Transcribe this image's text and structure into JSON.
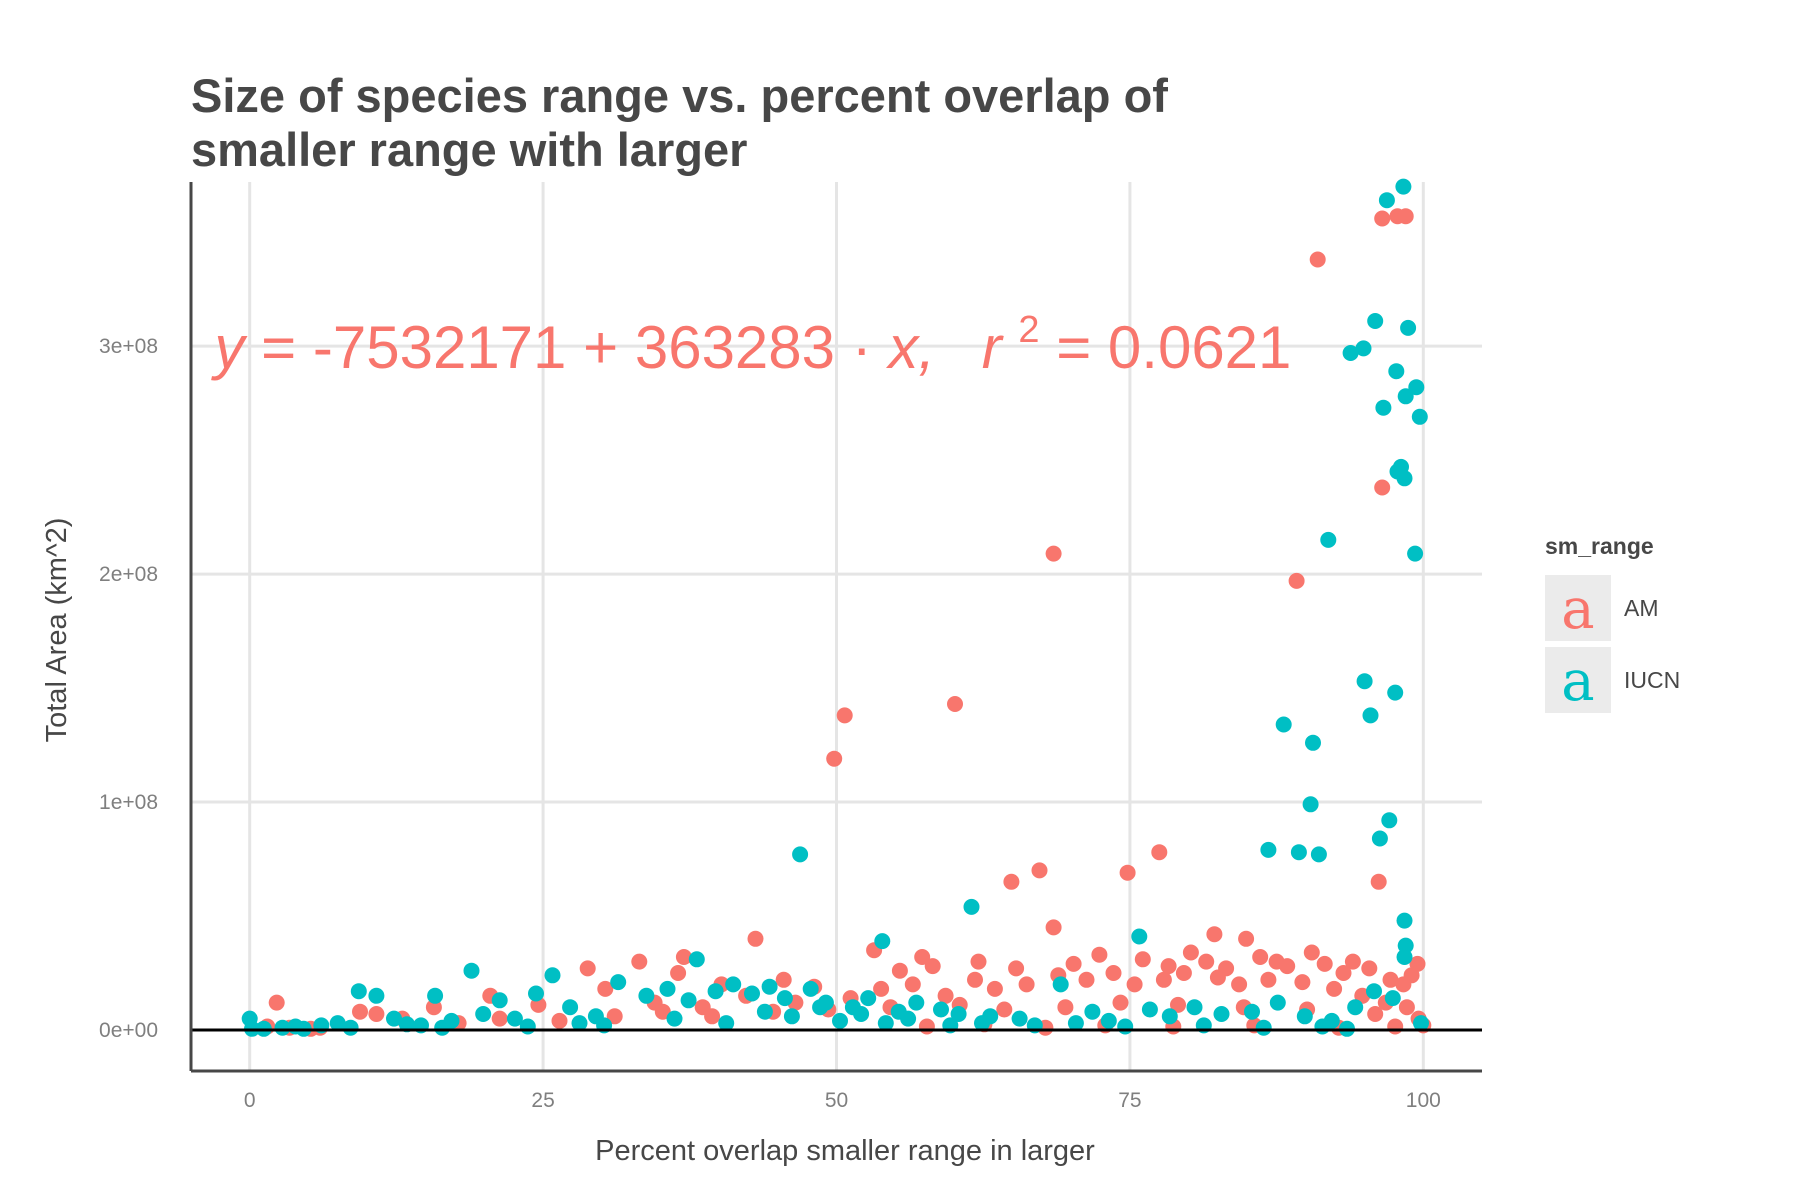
{
  "chart_data": {
    "type": "scatter",
    "title_lines": [
      "Size of species range vs. percent overlap of",
      "smaller range with larger"
    ],
    "xlabel": "Percent overlap smaller range in larger",
    "ylabel": "Total Area (km^2)",
    "xlim": [
      -5,
      105
    ],
    "ylim": [
      -18000000,
      372000000
    ],
    "x_ticks": [
      0,
      25,
      50,
      75,
      100
    ],
    "x_tick_labels": [
      "0",
      "25",
      "50",
      "75",
      "100"
    ],
    "y_ticks": [
      0,
      100000000,
      200000000,
      300000000
    ],
    "y_tick_labels": [
      "0e+00",
      "1e+08",
      "2e+08",
      "3e+08"
    ],
    "grid": true,
    "hline_y": 0,
    "annotation": {
      "y_label": "y",
      "equals_1": "=",
      "intercept": "-7532171",
      "plus": "+",
      "slope": "363283",
      "dot": "·",
      "x_label": "x,",
      "r_label": "r",
      "r_exp": "2",
      "equals_2": "=",
      "r2_value": "0.0621",
      "anchor_x": -3,
      "anchor_y": 300000000
    },
    "legend": {
      "title": "sm_range",
      "position": "right",
      "glyph": "a",
      "entries": [
        "AM",
        "IUCN"
      ]
    },
    "series": [
      {
        "name": "AM",
        "color": "#F8766D",
        "points": [
          [
            91,
            338000000
          ],
          [
            96.5,
            356000000
          ],
          [
            97.8,
            357000000
          ],
          [
            98.5,
            357000000
          ],
          [
            96.5,
            238000000
          ],
          [
            68.5,
            209000000
          ],
          [
            89.2,
            197000000
          ],
          [
            50.7,
            138000000
          ],
          [
            60.1,
            143000000
          ],
          [
            49.8,
            119000000
          ],
          [
            96.2,
            65000000
          ],
          [
            77.5,
            78000000
          ],
          [
            67.3,
            70000000
          ],
          [
            74.8,
            69000000
          ],
          [
            64.9,
            65000000
          ],
          [
            68.5,
            45000000
          ],
          [
            82.2,
            42000000
          ],
          [
            43.1,
            40000000
          ],
          [
            84.9,
            40000000
          ],
          [
            53.2,
            35000000
          ],
          [
            37,
            32000000
          ],
          [
            57.3,
            32000000
          ],
          [
            80.2,
            34000000
          ],
          [
            90.5,
            34000000
          ],
          [
            33.2,
            30000000
          ],
          [
            28.8,
            27000000
          ],
          [
            99.5,
            29000000
          ],
          [
            36.5,
            25000000
          ],
          [
            94,
            30000000
          ],
          [
            87.5,
            30000000
          ],
          [
            2.3,
            12000000
          ],
          [
            20.5,
            15000000
          ],
          [
            24.6,
            11000000
          ],
          [
            15.7,
            10000000
          ],
          [
            13,
            5000000
          ],
          [
            9.4,
            8000000
          ],
          [
            10.8,
            7000000
          ],
          [
            1.5,
            1500000
          ],
          [
            6,
            1000000
          ],
          [
            5.2,
            500000
          ],
          [
            30.3,
            18000000
          ],
          [
            40.2,
            20000000
          ],
          [
            45.5,
            22000000
          ],
          [
            48.1,
            19000000
          ],
          [
            55.4,
            26000000
          ],
          [
            58.2,
            28000000
          ],
          [
            62.1,
            30000000
          ],
          [
            65.3,
            27000000
          ],
          [
            70.2,
            29000000
          ],
          [
            72.4,
            33000000
          ],
          [
            76.1,
            31000000
          ],
          [
            78.3,
            28000000
          ],
          [
            81.5,
            30000000
          ],
          [
            83.2,
            27000000
          ],
          [
            86.1,
            32000000
          ],
          [
            88.4,
            28000000
          ],
          [
            91.6,
            29000000
          ],
          [
            93.2,
            25000000
          ],
          [
            95.4,
            27000000
          ],
          [
            97.2,
            22000000
          ],
          [
            99,
            24000000
          ],
          [
            98.3,
            20000000
          ],
          [
            100,
            2000000
          ],
          [
            99.6,
            5000000
          ],
          [
            34.5,
            12000000
          ],
          [
            38.6,
            10000000
          ],
          [
            42.3,
            15000000
          ],
          [
            46.5,
            12000000
          ],
          [
            51.2,
            14000000
          ],
          [
            53.8,
            18000000
          ],
          [
            56.5,
            20000000
          ],
          [
            59.3,
            15000000
          ],
          [
            61.8,
            22000000
          ],
          [
            63.5,
            18000000
          ],
          [
            66.2,
            20000000
          ],
          [
            68.9,
            24000000
          ],
          [
            71.3,
            22000000
          ],
          [
            73.6,
            25000000
          ],
          [
            75.4,
            20000000
          ],
          [
            77.9,
            22000000
          ],
          [
            79.6,
            25000000
          ],
          [
            82.5,
            23000000
          ],
          [
            84.3,
            20000000
          ],
          [
            86.8,
            22000000
          ],
          [
            89.7,
            21000000
          ],
          [
            92.4,
            18000000
          ],
          [
            94.8,
            15000000
          ],
          [
            96.8,
            12000000
          ],
          [
            98.6,
            10000000
          ],
          [
            17.8,
            3000000
          ],
          [
            21.3,
            5000000
          ],
          [
            26.4,
            4000000
          ],
          [
            31.1,
            6000000
          ],
          [
            35.2,
            8000000
          ],
          [
            39.4,
            6000000
          ],
          [
            44.6,
            8000000
          ],
          [
            49.3,
            9000000
          ],
          [
            54.6,
            10000000
          ],
          [
            60.5,
            11000000
          ],
          [
            64.3,
            9000000
          ],
          [
            69.5,
            10000000
          ],
          [
            74.2,
            12000000
          ],
          [
            79.1,
            11000000
          ],
          [
            84.7,
            10000000
          ],
          [
            90.1,
            9000000
          ],
          [
            95.9,
            7000000
          ],
          [
            57.7,
            1500000
          ],
          [
            62.6,
            2500000
          ],
          [
            67.8,
            1000000
          ],
          [
            72.9,
            2000000
          ],
          [
            78.7,
            1500000
          ],
          [
            85.6,
            2000000
          ],
          [
            92.8,
            1000000
          ],
          [
            97.6,
            1500000
          ],
          [
            3.4,
            1000000
          ]
        ]
      },
      {
        "name": "IUCN",
        "color": "#00BFC4",
        "points": [
          [
            98.3,
            370000000
          ],
          [
            96.9,
            364000000
          ],
          [
            95.9,
            311000000
          ],
          [
            98.7,
            308000000
          ],
          [
            94.9,
            299000000
          ],
          [
            93.8,
            297000000
          ],
          [
            97.7,
            289000000
          ],
          [
            99.4,
            282000000
          ],
          [
            98.5,
            278000000
          ],
          [
            96.6,
            273000000
          ],
          [
            99.7,
            269000000
          ],
          [
            98.1,
            247000000
          ],
          [
            97.8,
            245000000
          ],
          [
            98.4,
            242000000
          ],
          [
            91.9,
            215000000
          ],
          [
            99.3,
            209000000
          ],
          [
            95,
            153000000
          ],
          [
            97.6,
            148000000
          ],
          [
            95.5,
            138000000
          ],
          [
            88.1,
            134000000
          ],
          [
            90.6,
            126000000
          ],
          [
            90.4,
            99000000
          ],
          [
            97.1,
            92000000
          ],
          [
            96.3,
            84000000
          ],
          [
            86.8,
            79000000
          ],
          [
            89.4,
            78000000
          ],
          [
            91.1,
            77000000
          ],
          [
            46.9,
            77000000
          ],
          [
            61.5,
            54000000
          ],
          [
            98.4,
            48000000
          ],
          [
            53.9,
            39000000
          ],
          [
            75.8,
            41000000
          ],
          [
            98.5,
            37000000
          ],
          [
            38.1,
            31000000
          ],
          [
            98.4,
            32000000
          ],
          [
            18.9,
            26000000
          ],
          [
            25.8,
            24000000
          ],
          [
            9.3,
            17000000
          ],
          [
            10.8,
            15000000
          ],
          [
            15.8,
            15000000
          ],
          [
            21.3,
            13000000
          ],
          [
            24.4,
            16000000
          ],
          [
            0,
            5000000
          ],
          [
            0.2,
            500000
          ],
          [
            2.8,
            1000000
          ],
          [
            4.6,
            500000
          ],
          [
            7.5,
            3000000
          ],
          [
            12.3,
            5000000
          ],
          [
            14.6,
            2000000
          ],
          [
            17.2,
            4000000
          ],
          [
            19.9,
            7000000
          ],
          [
            22.6,
            5000000
          ],
          [
            27.3,
            10000000
          ],
          [
            29.5,
            6000000
          ],
          [
            31.4,
            21000000
          ],
          [
            33.8,
            15000000
          ],
          [
            35.6,
            18000000
          ],
          [
            37.4,
            13000000
          ],
          [
            39.7,
            17000000
          ],
          [
            41.2,
            20000000
          ],
          [
            42.8,
            16000000
          ],
          [
            44.3,
            19000000
          ],
          [
            45.6,
            14000000
          ],
          [
            47.8,
            18000000
          ],
          [
            49.1,
            12000000
          ],
          [
            51.4,
            10000000
          ],
          [
            52.7,
            14000000
          ],
          [
            55.3,
            8000000
          ],
          [
            56.8,
            12000000
          ],
          [
            58.9,
            9000000
          ],
          [
            60.4,
            7000000
          ],
          [
            63.1,
            6000000
          ],
          [
            65.6,
            5000000
          ],
          [
            69.1,
            20000000
          ],
          [
            71.8,
            8000000
          ],
          [
            73.2,
            4000000
          ],
          [
            76.7,
            9000000
          ],
          [
            78.4,
            6000000
          ],
          [
            80.5,
            10000000
          ],
          [
            82.8,
            7000000
          ],
          [
            85.4,
            8000000
          ],
          [
            87.6,
            12000000
          ],
          [
            89.9,
            6000000
          ],
          [
            92.2,
            4000000
          ],
          [
            94.2,
            10000000
          ],
          [
            95.8,
            17000000
          ],
          [
            97.4,
            14000000
          ],
          [
            99.8,
            3000000
          ],
          [
            36.2,
            5000000
          ],
          [
            40.6,
            3000000
          ],
          [
            43.9,
            8000000
          ],
          [
            46.2,
            6000000
          ],
          [
            48.6,
            10000000
          ],
          [
            50.3,
            4000000
          ],
          [
            52.1,
            7000000
          ],
          [
            54.2,
            3000000
          ],
          [
            56.1,
            5000000
          ],
          [
            59.7,
            2000000
          ],
          [
            62.4,
            3000000
          ],
          [
            66.9,
            2000000
          ],
          [
            70.4,
            3000000
          ],
          [
            74.6,
            1500000
          ],
          [
            81.3,
            2000000
          ],
          [
            86.4,
            1000000
          ],
          [
            91.4,
            1500000
          ],
          [
            93.5,
            500000
          ],
          [
            30.2,
            2000000
          ],
          [
            28.1,
            3000000
          ],
          [
            23.7,
            1500000
          ],
          [
            16.4,
            1000000
          ],
          [
            13.4,
            2500000
          ],
          [
            8.6,
            1000000
          ],
          [
            6.1,
            2000000
          ],
          [
            1.2,
            500000
          ],
          [
            3.9,
            1500000
          ]
        ]
      }
    ]
  }
}
